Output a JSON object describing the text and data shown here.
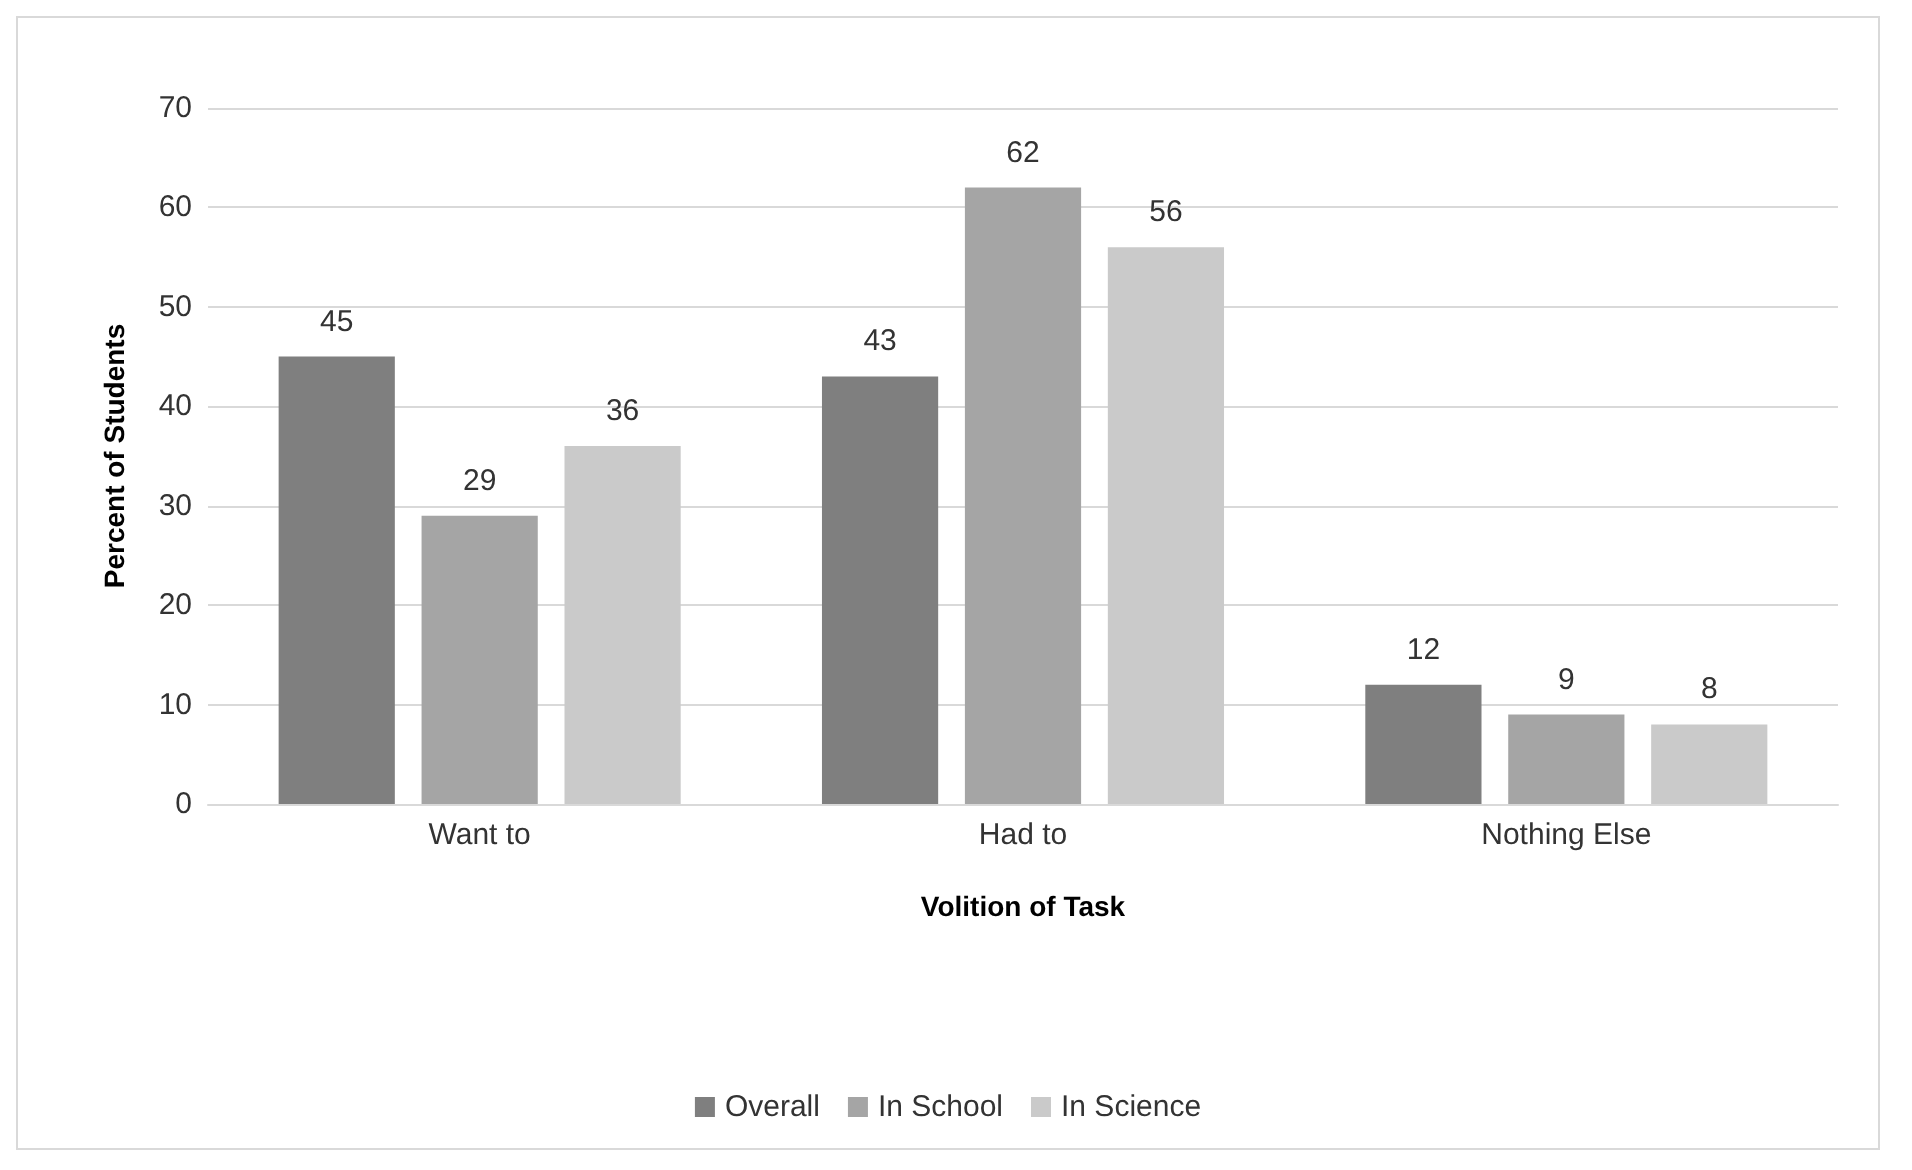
{
  "chart_data": {
    "type": "bar",
    "xlabel": "Volition of Task",
    "ylabel": "Percent of Students",
    "categories": [
      "Want to",
      "Had to",
      "Nothing Else"
    ],
    "series": [
      {
        "name": "Overall",
        "color": "#7f7f7f",
        "values": [
          45,
          43,
          12
        ]
      },
      {
        "name": "In School",
        "color": "#a5a5a5",
        "values": [
          29,
          62,
          9
        ]
      },
      {
        "name": "In Science",
        "color": "#cacaca",
        "values": [
          36,
          56,
          8
        ]
      }
    ],
    "ylim": [
      0,
      70
    ],
    "yticks": [
      0,
      10,
      20,
      30,
      40,
      50,
      60,
      70
    ],
    "grid": "y",
    "legend": "bottom",
    "data_labels": true
  }
}
